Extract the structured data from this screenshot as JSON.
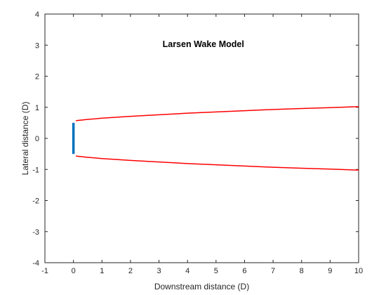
{
  "chart_data": {
    "type": "line",
    "title": "Larsen Wake Model",
    "xlabel": "Downstream distance (D)",
    "ylabel": "Lateral distance (D)",
    "xlim": [
      -1,
      10
    ],
    "ylim": [
      -4,
      4
    ],
    "xticks": [
      -1,
      0,
      1,
      2,
      3,
      4,
      5,
      6,
      7,
      8,
      9,
      10
    ],
    "yticks": [
      -4,
      -3,
      -2,
      -1,
      0,
      1,
      2,
      3,
      4
    ],
    "grid": false,
    "box": true,
    "turbine": {
      "x": 0,
      "y": [
        -0.5,
        0.5
      ],
      "color": "#0072BD"
    },
    "series": [
      {
        "color": "#FF0000",
        "x": [
          0.1,
          0.5,
          1,
          2,
          3,
          4,
          5,
          6,
          7,
          8,
          9,
          10
        ],
        "values": [
          0.57,
          0.61,
          0.65,
          0.71,
          0.76,
          0.81,
          0.85,
          0.89,
          0.93,
          0.96,
          0.99,
          1.02
        ]
      },
      {
        "color": "#FF0000",
        "x": [
          0.1,
          0.5,
          1,
          2,
          3,
          4,
          5,
          6,
          7,
          8,
          9,
          10
        ],
        "values": [
          -0.57,
          -0.61,
          -0.65,
          -0.71,
          -0.76,
          -0.81,
          -0.85,
          -0.89,
          -0.93,
          -0.96,
          -0.99,
          -1.02
        ]
      }
    ]
  }
}
